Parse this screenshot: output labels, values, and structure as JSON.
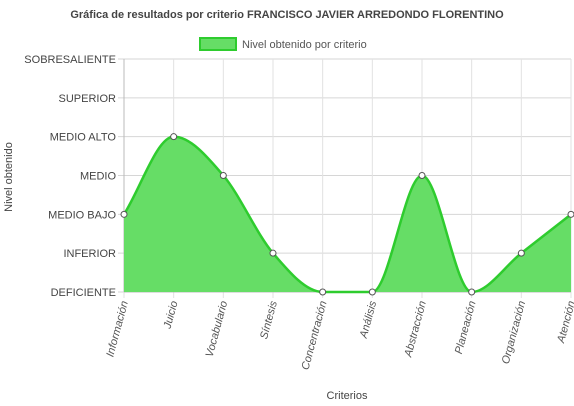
{
  "chart_data": {
    "type": "area",
    "title": "Gráfica de resultados por criterio FRANCISCO JAVIER ARREDONDO FLORENTINO",
    "xlabel": "Criterios",
    "ylabel": "Nivel obtenido",
    "y_levels": [
      "DEFICIENTE",
      "INFERIOR",
      "MEDIO BAJO",
      "MEDIO",
      "MEDIO ALTO",
      "SUPERIOR",
      "SOBRESALIENTE"
    ],
    "ylim": [
      0,
      6
    ],
    "categories": [
      "Información",
      "Juicio",
      "Vocabulario",
      "Síntesis",
      "Concentración",
      "Análisis",
      "Abstracción",
      "Planeación",
      "Organización",
      "Atención"
    ],
    "series": [
      {
        "name": "Nivel obtenido por criterio",
        "values": [
          2,
          4,
          3,
          1,
          0,
          0,
          3,
          0,
          1,
          2
        ],
        "fill": "#66dd66",
        "stroke": "#2ecc2e"
      }
    ],
    "legend_position": "top-center",
    "grid": true
  }
}
